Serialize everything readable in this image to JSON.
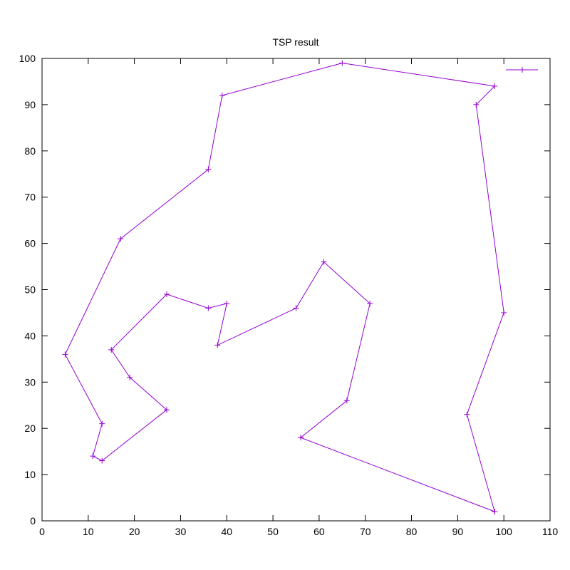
{
  "chart_data": {
    "type": "line",
    "title": "TSP result",
    "xlabel": "",
    "ylabel": "",
    "xlim": [
      0,
      110
    ],
    "ylim": [
      0,
      100
    ],
    "x_ticks": [
      0,
      10,
      20,
      30,
      40,
      50,
      60,
      70,
      80,
      90,
      100,
      110
    ],
    "y_ticks": [
      0,
      10,
      20,
      30,
      40,
      50,
      60,
      70,
      80,
      90,
      100
    ],
    "grid": false,
    "legend_position": "top-right",
    "series": [
      {
        "color": "#9400d3",
        "marker": "plus",
        "points": [
          [
            98,
            2
          ],
          [
            56,
            18
          ],
          [
            66,
            26
          ],
          [
            71,
            47
          ],
          [
            61,
            56
          ],
          [
            55,
            46
          ],
          [
            38,
            38
          ],
          [
            40,
            47
          ],
          [
            36,
            46
          ],
          [
            27,
            49
          ],
          [
            15,
            37
          ],
          [
            19,
            31
          ],
          [
            27,
            24
          ],
          [
            13,
            13
          ],
          [
            11,
            14
          ],
          [
            13,
            21
          ],
          [
            5,
            36
          ],
          [
            17,
            61
          ],
          [
            36,
            76
          ],
          [
            39,
            92
          ],
          [
            65,
            99
          ],
          [
            98,
            94
          ],
          [
            94,
            90
          ],
          [
            100,
            45
          ],
          [
            92,
            23
          ],
          [
            98,
            2
          ]
        ]
      }
    ]
  }
}
